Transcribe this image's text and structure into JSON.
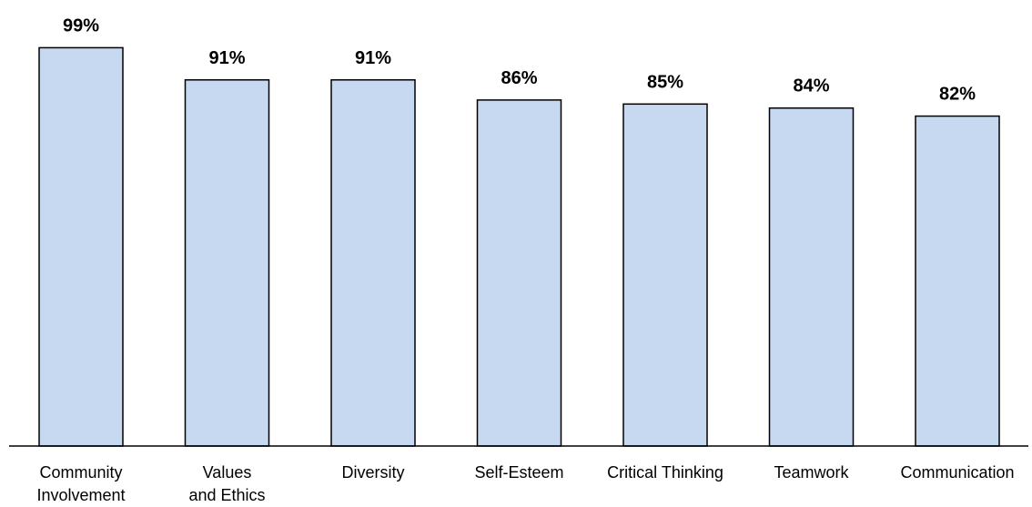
{
  "chart_data": {
    "type": "bar",
    "categories": [
      [
        "Community",
        "Involvement"
      ],
      [
        "Values",
        "and Ethics"
      ],
      [
        "Diversity"
      ],
      [
        "Self-Esteem"
      ],
      [
        "Critical Thinking"
      ],
      [
        "Teamwork"
      ],
      [
        "Communication"
      ]
    ],
    "values": [
      99,
      91,
      91,
      86,
      85,
      84,
      82
    ],
    "value_labels": [
      "99%",
      "91%",
      "91%",
      "86%",
      "85%",
      "84%",
      "82%"
    ],
    "title": "",
    "xlabel": "",
    "ylabel": "",
    "ylim": [
      0,
      100
    ],
    "grid": false,
    "bar_color": "#c6d9f1",
    "bar_edge_color": "#000000"
  }
}
